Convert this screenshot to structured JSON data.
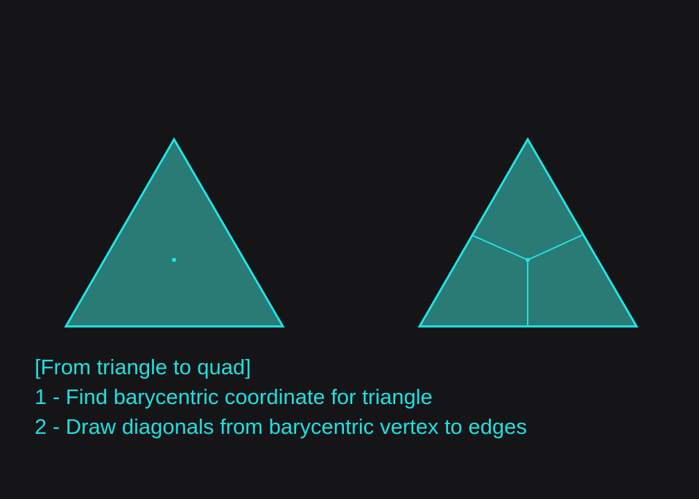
{
  "colors": {
    "background": "#151417",
    "triangle_fill": "#2a7a75",
    "stroke": "#1ee8e8",
    "text": "#1fe0e0"
  },
  "caption": {
    "title": "[From triangle to quad]",
    "step1": "1 - Find barycentric coordinate for triangle",
    "step2": "2 - Draw diagonals from barycentric vertex to edges"
  }
}
